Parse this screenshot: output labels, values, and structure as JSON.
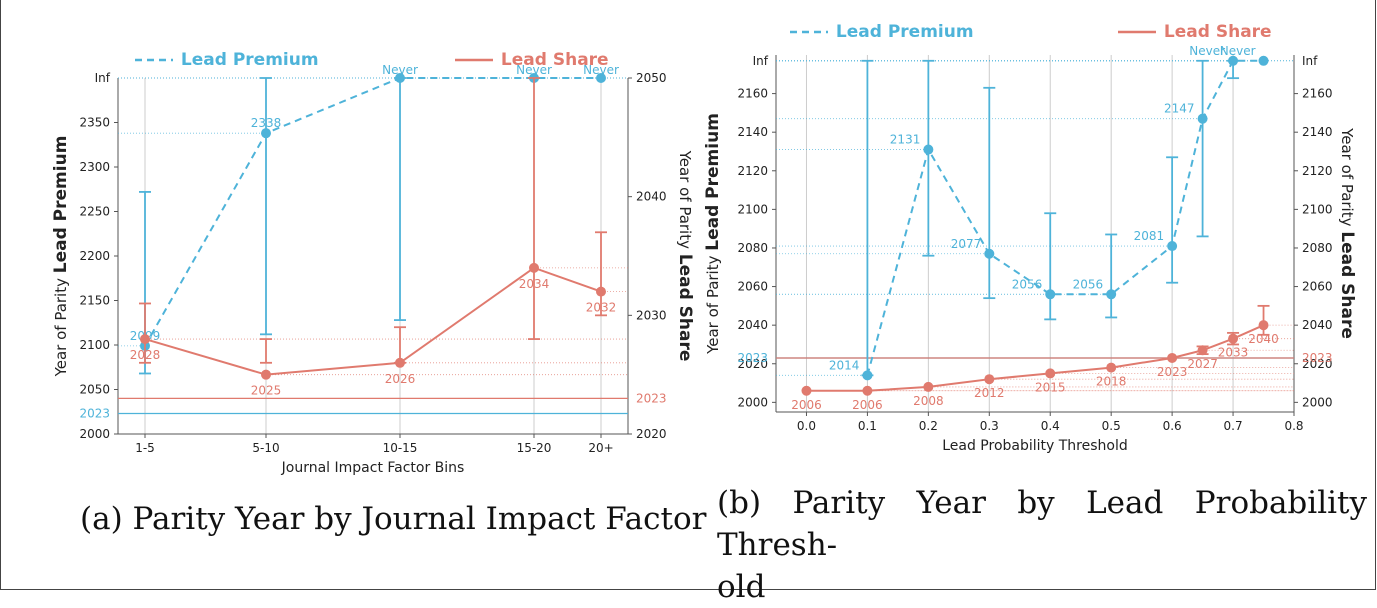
{
  "colors": {
    "premium": "#4eb3d9",
    "share": "#e07a6e",
    "grid": "#cccccc",
    "axis": "#555555"
  },
  "captions": {
    "a": "(a) Parity Year by Journal Impact Factor",
    "b": "(b) Parity Year by Lead Probability Threshold"
  },
  "chart_data": [
    {
      "id": "a",
      "type": "line",
      "title": "Parity Year by Journal Impact Factor",
      "xlabel": "Journal Impact Factor Bins",
      "ylabel_left_prefix": "Year of Parity",
      "ylabel_left_bold": "Lead Premium",
      "ylabel_right_prefix": "Year of Parity",
      "ylabel_right_bold": "Lead Share",
      "legend": [
        "Lead Premium",
        "Lead Share"
      ],
      "legend_position": "top",
      "categories": [
        "1-5",
        "5-10",
        "10-15",
        "15-20",
        "20+"
      ],
      "left_axis": {
        "ylim": [
          2000,
          2400
        ],
        "ticks": [
          2000,
          2050,
          2100,
          2150,
          2200,
          2250,
          2300,
          2350
        ],
        "inf_label": "Inf",
        "inf_value": 2400
      },
      "right_axis": {
        "ylim": [
          2020,
          2050
        ],
        "ticks": [
          2020,
          2030,
          2040,
          2050
        ]
      },
      "reference": {
        "premium": 2023,
        "share": 2023,
        "label": "2023"
      },
      "series": [
        {
          "name": "Lead Premium",
          "axis": "left",
          "style": "dashed",
          "values": [
            2099,
            2338,
            2400,
            2400,
            2400
          ],
          "labels": [
            "2099",
            "2338",
            "Never",
            "Never",
            "Never"
          ],
          "err_low": [
            2068,
            2112,
            2128,
            null,
            null
          ],
          "err_high": [
            2272,
            2400,
            2400,
            null,
            null
          ]
        },
        {
          "name": "Lead Share",
          "axis": "right",
          "style": "solid",
          "values": [
            2028,
            2025,
            2026,
            2034,
            2032
          ],
          "labels": [
            "2028",
            "2025",
            "2026",
            "2034",
            "2032"
          ],
          "err_low": [
            2026,
            2026,
            2026,
            2028,
            2030
          ],
          "err_high": [
            2031,
            2028,
            2029,
            2050,
            2037
          ]
        }
      ]
    },
    {
      "id": "b",
      "type": "line",
      "title": "Parity Year by Lead Probability Threshold",
      "xlabel": "Lead Probability Threshold",
      "ylabel_left_prefix": "Year of Parity",
      "ylabel_left_bold": "Lead Premium",
      "ylabel_right_prefix": "Year of Parity",
      "ylabel_right_bold": "Lead Share",
      "legend": [
        "Lead Premium",
        "Lead Share"
      ],
      "legend_position": "top",
      "xlim": [
        -0.05,
        0.8
      ],
      "xticks": [
        0.0,
        0.1,
        0.2,
        0.3,
        0.4,
        0.5,
        0.6,
        0.7,
        0.8
      ],
      "xtick_labels": [
        "0.0",
        "0.1",
        "0.2",
        "0.3",
        "0.4",
        "0.5",
        "0.6",
        "0.7",
        "0.8"
      ],
      "x": [
        0.0,
        0.1,
        0.2,
        0.3,
        0.4,
        0.5,
        0.6,
        0.65,
        0.7,
        0.75
      ],
      "left_axis": {
        "ylim": [
          1995,
          2180
        ],
        "ticks": [
          2000,
          2020,
          2040,
          2060,
          2080,
          2100,
          2120,
          2140,
          2160
        ],
        "inf_label": "Inf",
        "inf_value": 2177
      },
      "right_axis": {
        "ylim": [
          1995,
          2180
        ],
        "ticks": [
          2000,
          2020,
          2040,
          2060,
          2080,
          2100,
          2120,
          2140,
          2160
        ]
      },
      "reference": {
        "premium": 2023,
        "share": 2023,
        "label": "2023"
      },
      "series": [
        {
          "name": "Lead Premium",
          "axis": "left",
          "style": "dashed",
          "x": [
            0.1,
            0.2,
            0.3,
            0.4,
            0.5,
            0.6,
            0.65,
            0.7,
            0.75
          ],
          "values": [
            2014,
            2131,
            2077,
            2056,
            2056,
            2081,
            2147,
            2177,
            2177
          ],
          "labels": [
            "2014",
            "2131",
            "2077",
            "2056",
            "2056",
            "2081",
            "2147",
            "Never",
            "Never"
          ],
          "err_low": [
            2014,
            2076,
            2054,
            2043,
            2044,
            2062,
            2086,
            2168,
            null
          ],
          "err_high": [
            2177,
            2177,
            2163,
            2098,
            2087,
            2127,
            2177,
            2177,
            null
          ]
        },
        {
          "name": "Lead Share",
          "axis": "right",
          "style": "solid",
          "x": [
            0.0,
            0.1,
            0.2,
            0.3,
            0.4,
            0.5,
            0.6,
            0.65,
            0.7,
            0.75
          ],
          "values": [
            2006,
            2006,
            2008,
            2012,
            2015,
            2018,
            2023,
            2027,
            2033,
            2040
          ],
          "labels": [
            "2006",
            "2006",
            "2008",
            "2012",
            "2015",
            "2018",
            "2023",
            "2027",
            "2033",
            "2040"
          ],
          "err_low": [
            null,
            null,
            null,
            null,
            null,
            null,
            null,
            2025,
            2030,
            2035
          ],
          "err_high": [
            null,
            null,
            null,
            null,
            null,
            null,
            null,
            2029,
            2036,
            2050
          ]
        }
      ]
    }
  ]
}
